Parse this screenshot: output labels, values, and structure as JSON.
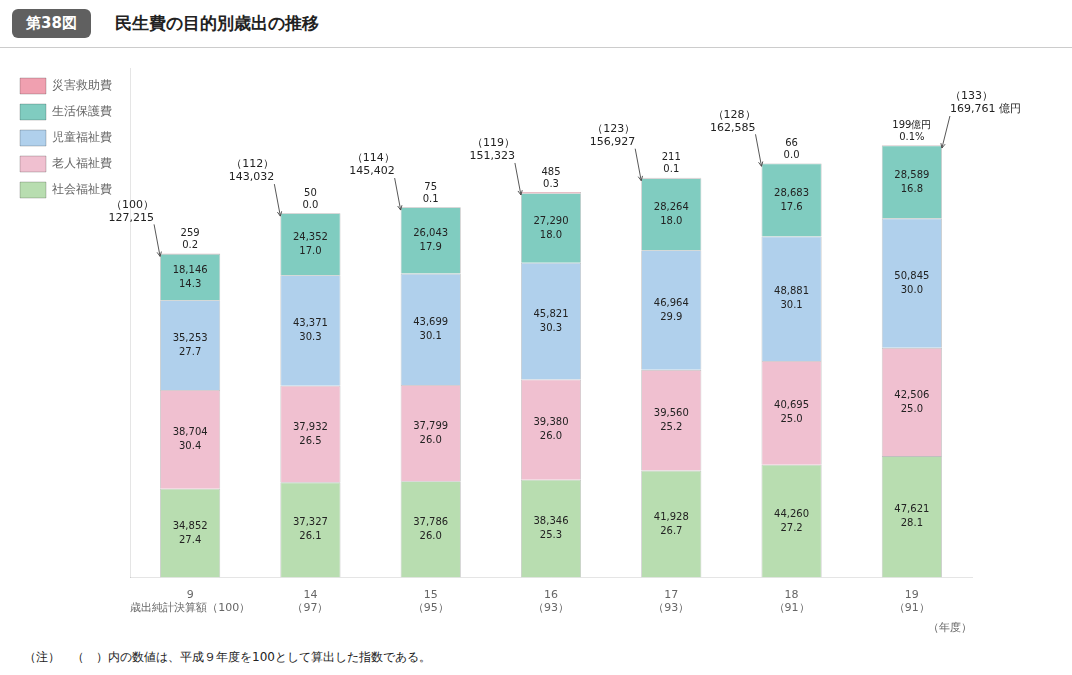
{
  "chart_data": {
    "type": "bar",
    "stacked": true,
    "figure_label": "第38図",
    "title": "民生費の目的別歳出の推移",
    "categories": [
      "9",
      "14",
      "15",
      "16",
      "17",
      "18",
      "19"
    ],
    "x_sublabels": [
      "歳出純計決算額（100）",
      "（97）",
      "（95）",
      "（93）",
      "（93）",
      "（91）",
      "（91）"
    ],
    "xlabel": "（年度）",
    "ylim": [
      0,
      200000
    ],
    "yticks": [],
    "tick_labels": "x",
    "grid": false,
    "legend": "upper left",
    "data_labels": true,
    "series": [
      {
        "name": "災害救助費",
        "color": "#f0a0b0",
        "values": [
          259,
          50,
          75,
          485,
          211,
          66,
          199
        ],
        "value_labels": [
          "259",
          "50",
          "75",
          "485",
          "211",
          "66",
          "199億円"
        ],
        "percent_labels": [
          "0.2",
          "0.0",
          "0.1",
          "0.3",
          "0.1",
          "0.0",
          "0.1%"
        ]
      },
      {
        "name": "生活保護費",
        "color": "#80ccc0",
        "values": [
          18146,
          24352,
          26043,
          27290,
          28264,
          28683,
          28589
        ],
        "value_labels": [
          "18,146",
          "24,352",
          "26,043",
          "27,290",
          "28,264",
          "28,683",
          "28,589"
        ],
        "percent_labels": [
          "14.3",
          "17.0",
          "17.9",
          "18.0",
          "18.0",
          "17.6",
          "16.8"
        ]
      },
      {
        "name": "児童福祉費",
        "color": "#b0d0ec",
        "values": [
          35253,
          43371,
          43699,
          45821,
          46964,
          48881,
          50845
        ],
        "value_labels": [
          "35,253",
          "43,371",
          "43,699",
          "45,821",
          "46,964",
          "48,881",
          "50,845"
        ],
        "percent_labels": [
          "27.7",
          "30.3",
          "30.1",
          "30.3",
          "29.9",
          "30.1",
          "30.0"
        ]
      },
      {
        "name": "老人福祉費",
        "color": "#f0c0d0",
        "values": [
          38704,
          37932,
          37799,
          39380,
          39560,
          40695,
          42506
        ],
        "value_labels": [
          "38,704",
          "37,932",
          "37,799",
          "39,380",
          "39,560",
          "40,695",
          "42,506"
        ],
        "percent_labels": [
          "30.4",
          "26.5",
          "26.0",
          "26.0",
          "25.2",
          "25.0",
          "25.0"
        ]
      },
      {
        "name": "社会福祉費",
        "color": "#b8ddb0",
        "values": [
          34852,
          37327,
          37786,
          38346,
          41928,
          44260,
          47621
        ],
        "value_labels": [
          "34,852",
          "37,327",
          "37,786",
          "38,346",
          "41,928",
          "44,260",
          "47,621"
        ],
        "percent_labels": [
          "27.4",
          "26.1",
          "26.0",
          "25.3",
          "26.7",
          "27.2",
          "28.1"
        ]
      }
    ],
    "bar_annotations": [
      {
        "index_label": "（100）",
        "total_label": "127,215"
      },
      {
        "index_label": "（112）",
        "total_label": "143,032"
      },
      {
        "index_label": "（114）",
        "total_label": "145,402"
      },
      {
        "index_label": "（119）",
        "total_label": "151,323"
      },
      {
        "index_label": "（123）",
        "total_label": "156,927"
      },
      {
        "index_label": "（128）",
        "total_label": "162,585"
      },
      {
        "index_label": "（133）",
        "total_label": "169,761 億円"
      }
    ],
    "note": "（注）　（　）内の数値は、平成９年度を100として算出した指数である。"
  }
}
